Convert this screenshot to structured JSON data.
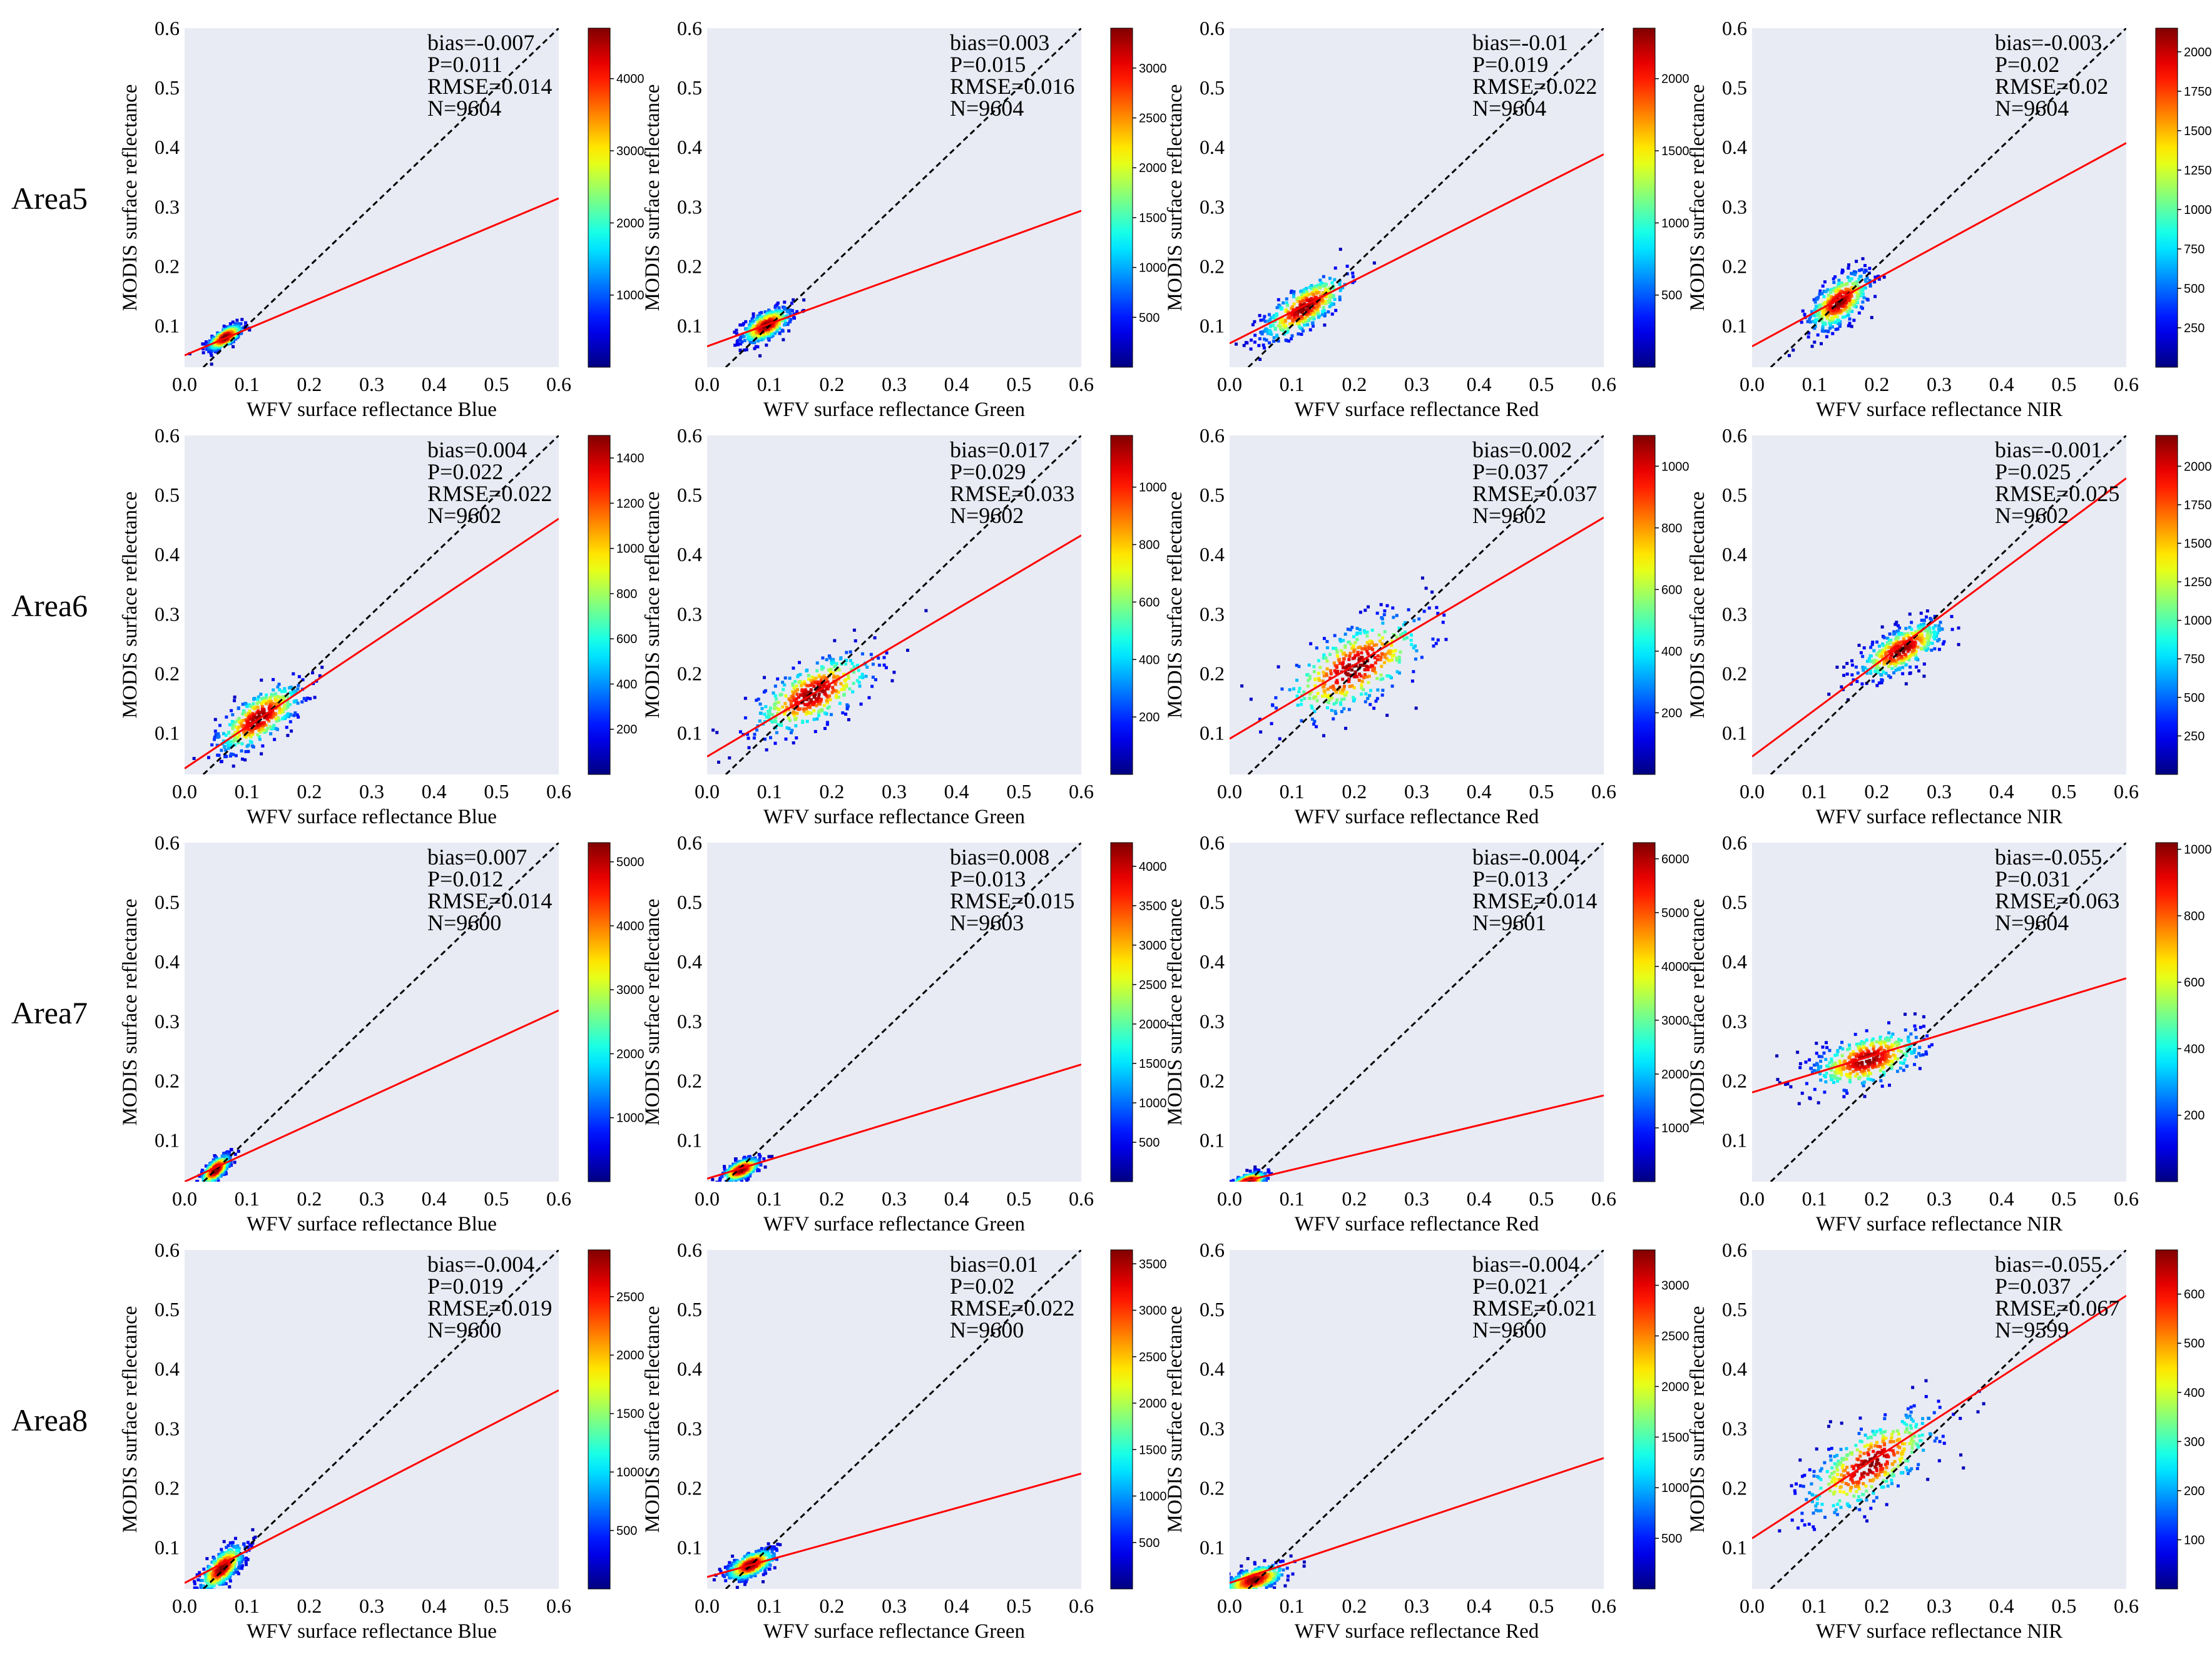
{
  "chart_data": {
    "type": "scatter",
    "description_axes": {
      "ylabel": "MODIS surface reflectance",
      "xlim": [
        0.0,
        0.6
      ],
      "ylim": [
        0.03,
        0.6
      ],
      "xticks": [
        "0.0",
        "0.1",
        "0.2",
        "0.3",
        "0.4",
        "0.5",
        "0.6"
      ],
      "yticks": [
        "0.1",
        "0.2",
        "0.3",
        "0.4",
        "0.5",
        "0.6"
      ],
      "grid": false
    },
    "rows": [
      {
        "label": "Area5",
        "panels": [
          {
            "band": "Blue",
            "xlabel": "WFV surface reflectance Blue",
            "stats": [
              "bias=-0.007",
              "P=0.011",
              "RMSE=0.014",
              "N=9604"
            ],
            "fit": {
              "intercept": 0.05,
              "slope": 0.44
            },
            "cluster": {
              "cx": 0.065,
              "cy": 0.08,
              "sx": 0.014,
              "sy": 0.011,
              "rho": 0.7
            },
            "colorbar_ticks": [
              "1000",
              "2000",
              "3000",
              "4000"
            ],
            "colorbar_max": 4700
          },
          {
            "band": "Green",
            "xlabel": "WFV surface reflectance Green",
            "stats": [
              "bias=0.003",
              "P=0.015",
              "RMSE=0.016",
              "N=9604"
            ],
            "fit": {
              "intercept": 0.065,
              "slope": 0.38
            },
            "cluster": {
              "cx": 0.095,
              "cy": 0.1,
              "sx": 0.02,
              "sy": 0.015,
              "rho": 0.6
            },
            "colorbar_ticks": [
              "500",
              "1000",
              "1500",
              "2000",
              "2500",
              "3000"
            ],
            "colorbar_max": 3400
          },
          {
            "band": "Red",
            "xlabel": "WFV surface reflectance Red",
            "stats": [
              "bias=-0.01",
              "P=0.019",
              "RMSE=0.022",
              "N=9604"
            ],
            "fit": {
              "intercept": 0.07,
              "slope": 0.53
            },
            "cluster": {
              "cx": 0.12,
              "cy": 0.13,
              "sx": 0.035,
              "sy": 0.028,
              "rho": 0.75
            },
            "colorbar_ticks": [
              "500",
              "1000",
              "1500",
              "2000"
            ],
            "colorbar_max": 2350
          },
          {
            "band": "NIR",
            "xlabel": "WFV surface reflectance NIR",
            "stats": [
              "bias=-0.003",
              "P=0.02",
              "RMSE=0.02",
              "N=9604"
            ],
            "fit": {
              "intercept": 0.065,
              "slope": 0.57
            },
            "cluster": {
              "cx": 0.14,
              "cy": 0.14,
              "sx": 0.025,
              "sy": 0.025,
              "rho": 0.6
            },
            "colorbar_ticks": [
              "250",
              "500",
              "750",
              "1000",
              "1250",
              "1500",
              "1750",
              "2000"
            ],
            "colorbar_max": 2150
          }
        ]
      },
      {
        "label": "Area6",
        "panels": [
          {
            "band": "Blue",
            "xlabel": "WFV surface reflectance Blue",
            "stats": [
              "bias=0.004",
              "P=0.022",
              "RMSE=0.022",
              "N=9602"
            ],
            "fit": {
              "intercept": 0.04,
              "slope": 0.7
            },
            "cluster": {
              "cx": 0.12,
              "cy": 0.125,
              "sx": 0.035,
              "sy": 0.03,
              "rho": 0.7
            },
            "colorbar_ticks": [
              "200",
              "400",
              "600",
              "800",
              "1000",
              "1200",
              "1400"
            ],
            "colorbar_max": 1500
          },
          {
            "band": "Green",
            "xlabel": "WFV surface reflectance Green",
            "stats": [
              "bias=0.017",
              "P=0.029",
              "RMSE=0.033",
              "N=9602"
            ],
            "fit": {
              "intercept": 0.06,
              "slope": 0.62
            },
            "cluster": {
              "cx": 0.17,
              "cy": 0.165,
              "sx": 0.05,
              "sy": 0.035,
              "rho": 0.65
            },
            "colorbar_ticks": [
              "200",
              "400",
              "600",
              "800",
              "1000"
            ],
            "colorbar_max": 1180
          },
          {
            "band": "Red",
            "xlabel": "WFV surface reflectance Red",
            "stats": [
              "bias=0.002",
              "P=0.037",
              "RMSE=0.037",
              "N=9602"
            ],
            "fit": {
              "intercept": 0.09,
              "slope": 0.62
            },
            "cluster": {
              "cx": 0.2,
              "cy": 0.21,
              "sx": 0.06,
              "sy": 0.045,
              "rho": 0.65
            },
            "colorbar_ticks": [
              "200",
              "400",
              "600",
              "800",
              "1000"
            ],
            "colorbar_max": 1100
          },
          {
            "band": "NIR",
            "xlabel": "WFV surface reflectance NIR",
            "stats": [
              "bias=-0.001",
              "P=0.025",
              "RMSE=0.025",
              "N=9602"
            ],
            "fit": {
              "intercept": 0.06,
              "slope": 0.78
            },
            "cluster": {
              "cx": 0.24,
              "cy": 0.24,
              "sx": 0.035,
              "sy": 0.025,
              "rho": 0.7
            },
            "colorbar_ticks": [
              "250",
              "500",
              "750",
              "1000",
              "1250",
              "1500",
              "1750",
              "2000"
            ],
            "colorbar_max": 2200
          }
        ]
      },
      {
        "label": "Area7",
        "panels": [
          {
            "band": "Blue",
            "xlabel": "WFV surface reflectance Blue",
            "stats": [
              "bias=0.007",
              "P=0.012",
              "RMSE=0.014",
              "N=9600"
            ],
            "fit": {
              "intercept": 0.03,
              "slope": 0.48
            },
            "cluster": {
              "cx": 0.05,
              "cy": 0.05,
              "sx": 0.012,
              "sy": 0.013,
              "rho": 0.7
            },
            "colorbar_ticks": [
              "1000",
              "2000",
              "3000",
              "4000",
              "5000"
            ],
            "colorbar_max": 5300
          },
          {
            "band": "Green",
            "xlabel": "WFV surface reflectance Green",
            "stats": [
              "bias=0.008",
              "P=0.013",
              "RMSE=0.015",
              "N=9603"
            ],
            "fit": {
              "intercept": 0.035,
              "slope": 0.32
            },
            "cluster": {
              "cx": 0.055,
              "cy": 0.05,
              "sx": 0.015,
              "sy": 0.01,
              "rho": 0.6
            },
            "colorbar_ticks": [
              "500",
              "1000",
              "1500",
              "2000",
              "2500",
              "3000",
              "3500",
              "4000"
            ],
            "colorbar_max": 4300
          },
          {
            "band": "Red",
            "xlabel": "WFV surface reflectance Red",
            "stats": [
              "bias=-0.004",
              "P=0.013",
              "RMSE=0.014",
              "N=9601"
            ],
            "fit": {
              "intercept": 0.025,
              "slope": 0.25
            },
            "cluster": {
              "cx": 0.03,
              "cy": 0.03,
              "sx": 0.015,
              "sy": 0.008,
              "rho": 0.6
            },
            "colorbar_ticks": [
              "1000",
              "2000",
              "3000",
              "4000",
              "5000",
              "6000"
            ],
            "colorbar_max": 6300
          },
          {
            "band": "NIR",
            "xlabel": "WFV surface reflectance NIR",
            "stats": [
              "bias=-0.055",
              "P=0.031",
              "RMSE=0.063",
              "N=9604"
            ],
            "fit": {
              "intercept": 0.18,
              "slope": 0.32
            },
            "cluster": {
              "cx": 0.185,
              "cy": 0.235,
              "sx": 0.045,
              "sy": 0.025,
              "rho": 0.5
            },
            "colorbar_ticks": [
              "200",
              "400",
              "600",
              "800",
              "1000"
            ],
            "colorbar_max": 1020
          }
        ]
      },
      {
        "label": "Area8",
        "panels": [
          {
            "band": "Blue",
            "xlabel": "WFV surface reflectance Blue",
            "stats": [
              "bias=-0.004",
              "P=0.019",
              "RMSE=0.019",
              "N=9600"
            ],
            "fit": {
              "intercept": 0.04,
              "slope": 0.54
            },
            "cluster": {
              "cx": 0.06,
              "cy": 0.065,
              "sx": 0.018,
              "sy": 0.02,
              "rho": 0.7
            },
            "colorbar_ticks": [
              "500",
              "1000",
              "1500",
              "2000",
              "2500"
            ],
            "colorbar_max": 2900
          },
          {
            "band": "Green",
            "xlabel": "WFV surface reflectance Green",
            "stats": [
              "bias=0.01",
              "P=0.02",
              "RMSE=0.022",
              "N=9600"
            ],
            "fit": {
              "intercept": 0.05,
              "slope": 0.29
            },
            "cluster": {
              "cx": 0.07,
              "cy": 0.07,
              "sx": 0.02,
              "sy": 0.013,
              "rho": 0.6
            },
            "colorbar_ticks": [
              "500",
              "1000",
              "1500",
              "2000",
              "2500",
              "3000",
              "3500"
            ],
            "colorbar_max": 3650
          },
          {
            "band": "Red",
            "xlabel": "WFV surface reflectance Red",
            "stats": [
              "bias=-0.004",
              "P=0.021",
              "RMSE=0.021",
              "N=9600"
            ],
            "fit": {
              "intercept": 0.04,
              "slope": 0.35
            },
            "cluster": {
              "cx": 0.04,
              "cy": 0.045,
              "sx": 0.025,
              "sy": 0.013,
              "rho": 0.6
            },
            "colorbar_ticks": [
              "500",
              "1000",
              "1500",
              "2000",
              "2500",
              "3000"
            ],
            "colorbar_max": 3350
          },
          {
            "band": "NIR",
            "xlabel": "WFV surface reflectance NIR",
            "stats": [
              "bias=-0.055",
              "P=0.037",
              "RMSE=0.067",
              "N=9599"
            ],
            "fit": {
              "intercept": 0.115,
              "slope": 0.68
            },
            "cluster": {
              "cx": 0.19,
              "cy": 0.24,
              "sx": 0.055,
              "sy": 0.045,
              "rho": 0.7
            },
            "colorbar_ticks": [
              "100",
              "200",
              "300",
              "400",
              "500",
              "600"
            ],
            "colorbar_max": 690
          }
        ]
      }
    ],
    "reference_line": "1:1",
    "fit_line_color": "#ff0000",
    "colormap": "jet"
  }
}
